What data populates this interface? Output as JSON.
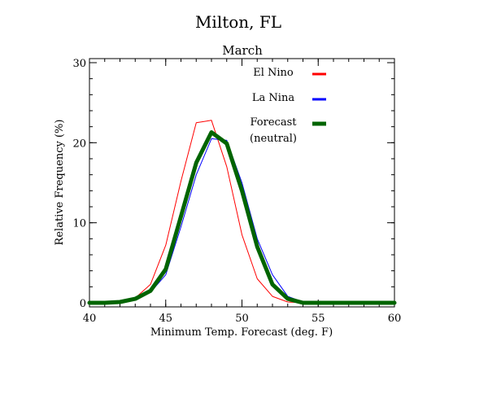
{
  "chart_data": {
    "type": "line",
    "title": "Milton, FL",
    "subtitle": "March",
    "xlabel": "Minimum Temp. Forecast (deg. F)",
    "ylabel": "Relative Frequency (%)",
    "xlim": [
      40,
      60
    ],
    "ylim": [
      0,
      30
    ],
    "xticks": [
      40,
      45,
      50,
      55,
      60
    ],
    "yticks": [
      0,
      10,
      20,
      30
    ],
    "grid": false,
    "legend_position": "top-right",
    "series": [
      {
        "name": "El Nino",
        "color": "#ff0000",
        "x": [
          40,
          41,
          42,
          43,
          44,
          45,
          46,
          47,
          48,
          49,
          50,
          51,
          52,
          53,
          54,
          55,
          56,
          57,
          58,
          59,
          60
        ],
        "y": [
          0,
          0,
          0.1,
          0.6,
          2.3,
          7.2,
          15.2,
          22.5,
          22.8,
          17.0,
          8.5,
          3.0,
          0.8,
          0.1,
          0,
          0,
          0,
          0,
          0,
          0,
          0
        ]
      },
      {
        "name": "La Nina",
        "color": "#0000ff",
        "x": [
          40,
          41,
          42,
          43,
          44,
          45,
          46,
          47,
          48,
          49,
          50,
          51,
          52,
          53,
          54,
          55,
          56,
          57,
          58,
          59,
          60
        ],
        "y": [
          0,
          0,
          0.1,
          0.4,
          1.3,
          3.5,
          9.5,
          16.0,
          20.5,
          20.3,
          15.0,
          8.0,
          3.5,
          0.8,
          0.1,
          0,
          0,
          0,
          0,
          0,
          0
        ]
      },
      {
        "name": "Forecast (neutral)",
        "legend_lines": [
          "Forecast",
          "(neutral)"
        ],
        "color": "#006400",
        "x": [
          40,
          41,
          42,
          43,
          44,
          45,
          46,
          47,
          48,
          49,
          50,
          51,
          52,
          53,
          54,
          55,
          56,
          57,
          58,
          59,
          60
        ],
        "y": [
          0,
          0,
          0.1,
          0.5,
          1.5,
          4.2,
          10.8,
          17.5,
          21.3,
          19.9,
          14.0,
          7.0,
          2.3,
          0.5,
          0,
          0,
          0,
          0,
          0,
          0,
          0
        ]
      }
    ]
  }
}
